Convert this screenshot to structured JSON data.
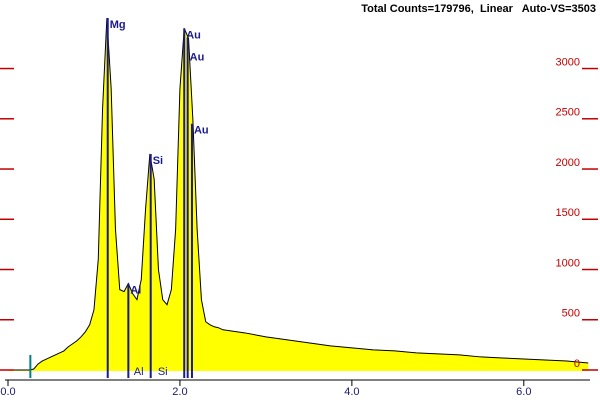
{
  "chart_data": {
    "type": "spectrum",
    "title": "Total Counts=179796,  Linear   Auto-VS=3503",
    "color": "#ffff00",
    "line_color": "#000000",
    "axis_color": "#c00000",
    "marker_color": "#1a1a8c",
    "x": [
      0.0,
      0.05,
      0.1,
      0.15,
      0.2,
      0.25,
      0.3,
      0.35,
      0.4,
      0.45,
      0.5,
      0.55,
      0.6,
      0.65,
      0.7,
      0.75,
      0.8,
      0.85,
      0.9,
      0.95,
      1.0,
      1.05,
      1.1,
      1.15,
      1.2,
      1.25,
      1.3,
      1.35,
      1.4,
      1.45,
      1.5,
      1.55,
      1.6,
      1.65,
      1.7,
      1.75,
      1.8,
      1.85,
      1.9,
      1.95,
      2.0,
      2.05,
      2.1,
      2.15,
      2.2,
      2.25,
      2.3,
      2.35,
      2.4,
      2.45,
      2.5,
      2.75,
      3.0,
      3.25,
      3.5,
      3.75,
      4.0,
      4.25,
      4.5,
      4.75,
      5.0,
      5.25,
      5.5,
      5.75,
      6.0,
      6.25,
      6.5,
      6.75
    ],
    "values": [
      0,
      0,
      0,
      0,
      0,
      0,
      10,
      60,
      90,
      110,
      130,
      150,
      170,
      190,
      230,
      260,
      290,
      330,
      380,
      450,
      600,
      1100,
      2600,
      3503,
      2800,
      1400,
      800,
      780,
      860,
      760,
      700,
      900,
      1600,
      2150,
      1900,
      1000,
      700,
      650,
      800,
      1400,
      2800,
      3400,
      3300,
      2500,
      1400,
      700,
      480,
      450,
      430,
      420,
      400,
      370,
      330,
      300,
      270,
      240,
      220,
      200,
      190,
      170,
      160,
      150,
      130,
      120,
      110,
      100,
      90,
      70
    ],
    "markers": [
      {
        "label": "Mg",
        "x": 1.16,
        "height": 3503
      },
      {
        "label": "Al",
        "x": 1.4,
        "height": 860
      },
      {
        "label": "Si",
        "x": 1.66,
        "height": 2150
      },
      {
        "label": "Au",
        "x": 2.05,
        "height": 3400
      },
      {
        "label": "Au",
        "x": 2.09,
        "height": 3300
      },
      {
        "label": "Au",
        "x": 2.14,
        "height": 2450
      }
    ],
    "escape_labels": [
      {
        "label": "Al",
        "x": 1.52
      },
      {
        "label": "Si",
        "x": 1.8
      }
    ],
    "cursor": {
      "x": 0.26,
      "height": 150,
      "color": "#008080"
    },
    "xlim": [
      0,
      6.77
    ],
    "ylim": [
      0,
      3503
    ],
    "xticks": [
      {
        "value": 0,
        "label": "0.0"
      },
      {
        "value": 2,
        "label": "2.0"
      },
      {
        "value": 4,
        "label": "4.0"
      },
      {
        "value": 6,
        "label": "6.0"
      }
    ],
    "yticks": [
      0,
      500,
      1000,
      1500,
      2000,
      2500,
      3000
    ]
  }
}
